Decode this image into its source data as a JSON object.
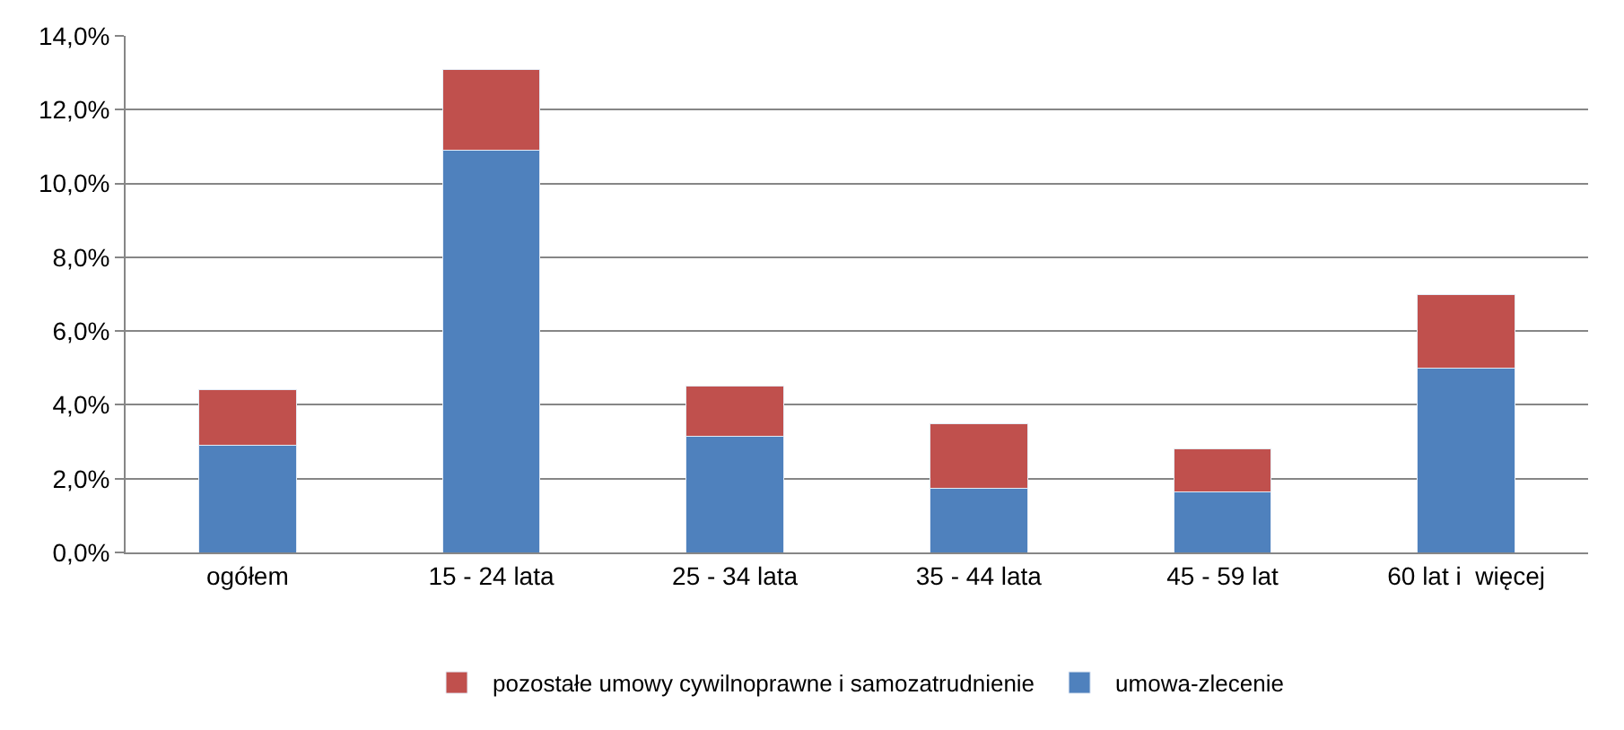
{
  "chart_data": {
    "type": "bar",
    "stacked": true,
    "categories": [
      "ogółem",
      "15 - 24 lata",
      "25 - 34 lata",
      "35 - 44 lata",
      "45 - 59 lat",
      "60 lat i  więcej"
    ],
    "series": [
      {
        "name": "umowa-zlecenie",
        "color": "#4f81bd",
        "values": [
          2.9,
          10.9,
          3.15,
          1.75,
          1.65,
          5.0
        ]
      },
      {
        "name": "pozostałe umowy cywilnoprawne i samozatrudnienie",
        "color": "#c0504d",
        "values": [
          1.5,
          2.2,
          1.35,
          1.75,
          1.15,
          2.0
        ]
      }
    ],
    "ylim": [
      0,
      14
    ],
    "yticks": [
      {
        "value": 0,
        "label": "0,0%"
      },
      {
        "value": 2,
        "label": "2,0%"
      },
      {
        "value": 4,
        "label": "4,0%"
      },
      {
        "value": 6,
        "label": "6,0%"
      },
      {
        "value": 8,
        "label": "8,0%"
      },
      {
        "value": 10,
        "label": "10,0%"
      },
      {
        "value": 12,
        "label": "12,0%"
      },
      {
        "value": 14,
        "label": "14,0%"
      }
    ],
    "grid": "y",
    "legend": "bottom"
  }
}
